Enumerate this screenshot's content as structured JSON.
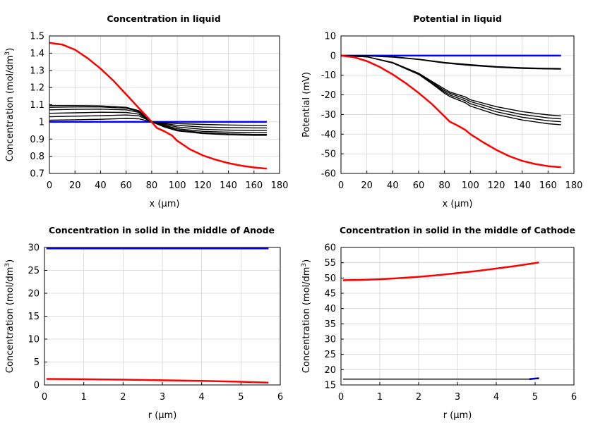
{
  "chart_data": [
    {
      "type": "line",
      "title": "Concentration in liquid",
      "xlabel": "x (µm)",
      "ylabel": "Concentration (mol/dm",
      "ylabel_sup": "3",
      "ylabel_end": ")",
      "xlim": [
        0,
        180
      ],
      "ylim": [
        0.7,
        1.5
      ],
      "xticks": [
        "0",
        "20",
        "40",
        "60",
        "80",
        "100",
        "120",
        "140",
        "160",
        "180"
      ],
      "yticks": [
        "0.7",
        "0.8",
        "0.9",
        "1",
        "1.1",
        "1.2",
        "1.3",
        "1.4",
        "1.5"
      ],
      "grid": true,
      "series": [
        {
          "color": "#0000ff",
          "x": [
            0,
            170
          ],
          "y": [
            1.0,
            1.0
          ]
        },
        {
          "color": "#000000",
          "x": [
            0,
            20,
            40,
            60,
            70,
            80,
            90,
            100,
            120,
            140,
            160,
            170
          ],
          "y": [
            1.01,
            1.012,
            1.015,
            1.02,
            1.018,
            1.0,
            0.995,
            0.99,
            0.985,
            0.982,
            0.98,
            0.98
          ]
        },
        {
          "color": "#000000",
          "x": [
            0,
            20,
            40,
            60,
            70,
            80,
            90,
            100,
            120,
            140,
            160,
            170
          ],
          "y": [
            1.03,
            1.033,
            1.036,
            1.04,
            1.035,
            1.0,
            0.99,
            0.98,
            0.97,
            0.967,
            0.965,
            0.965
          ]
        },
        {
          "color": "#000000",
          "x": [
            0,
            20,
            40,
            60,
            70,
            80,
            90,
            100,
            120,
            140,
            160,
            170
          ],
          "y": [
            1.05,
            1.053,
            1.056,
            1.055,
            1.045,
            1.0,
            0.985,
            0.97,
            0.957,
            0.952,
            0.95,
            0.95
          ]
        },
        {
          "color": "#000000",
          "x": [
            0,
            20,
            40,
            60,
            70,
            80,
            90,
            100,
            120,
            140,
            160,
            170
          ],
          "y": [
            1.07,
            1.073,
            1.074,
            1.07,
            1.055,
            1.0,
            0.98,
            0.96,
            0.945,
            0.94,
            0.937,
            0.937
          ]
        },
        {
          "color": "#000000",
          "x": [
            0,
            20,
            40,
            60,
            70,
            80,
            90,
            100,
            120,
            140,
            160,
            170
          ],
          "y": [
            1.085,
            1.087,
            1.087,
            1.08,
            1.06,
            1.0,
            0.975,
            0.953,
            0.937,
            0.93,
            0.927,
            0.927
          ]
        },
        {
          "color": "#000000",
          "x": [
            0,
            20,
            40,
            60,
            70,
            80,
            90,
            100,
            120,
            140,
            160,
            170
          ],
          "y": [
            1.095,
            1.095,
            1.093,
            1.085,
            1.065,
            1.0,
            0.97,
            0.948,
            0.932,
            0.925,
            0.922,
            0.922
          ]
        },
        {
          "color": "#ff0000",
          "x": [
            0,
            10,
            20,
            30,
            40,
            50,
            60,
            70,
            80,
            84,
            90,
            96,
            100,
            110,
            120,
            130,
            140,
            150,
            160,
            170
          ],
          "y": [
            1.46,
            1.45,
            1.42,
            1.37,
            1.31,
            1.24,
            1.16,
            1.08,
            1.0,
            0.965,
            0.945,
            0.92,
            0.89,
            0.84,
            0.805,
            0.78,
            0.76,
            0.745,
            0.735,
            0.728
          ]
        }
      ]
    },
    {
      "type": "line",
      "title": "Potential in liquid",
      "xlabel": "x (µm)",
      "ylabel": "Potential (mV)",
      "ylabel_sup": "",
      "ylabel_end": "",
      "xlim": [
        0,
        180
      ],
      "ylim": [
        -60,
        10
      ],
      "xticks": [
        "0",
        "20",
        "40",
        "60",
        "80",
        "100",
        "120",
        "140",
        "160",
        "180"
      ],
      "yticks": [
        "-60",
        "-50",
        "-40",
        "-30",
        "-20",
        "-10",
        "0",
        "10"
      ],
      "grid": true,
      "series": [
        {
          "color": "#0000ff",
          "x": [
            0,
            170
          ],
          "y": [
            0,
            0
          ]
        },
        {
          "color": "#000000",
          "x": [
            0,
            20,
            40,
            60,
            80,
            100,
            120,
            140,
            160,
            170
          ],
          "y": [
            0,
            -0.1,
            -0.6,
            -1.8,
            -3.5,
            -4.6,
            -5.6,
            -6.2,
            -6.5,
            -6.6
          ]
        },
        {
          "color": "#000000",
          "x": [
            0,
            20,
            40,
            60,
            80,
            100,
            120,
            140,
            160,
            170
          ],
          "y": [
            0,
            -0.15,
            -0.8,
            -2.0,
            -3.8,
            -5.0,
            -5.9,
            -6.5,
            -6.8,
            -6.9
          ]
        },
        {
          "color": "#000000",
          "x": [
            0,
            20,
            40,
            60,
            70,
            80,
            84,
            96,
            100,
            120,
            140,
            160,
            170
          ],
          "y": [
            0,
            -0.6,
            -3.5,
            -9.0,
            -13,
            -17,
            -18.5,
            -21,
            -22.5,
            -26,
            -28.5,
            -30.2,
            -30.7
          ]
        },
        {
          "color": "#000000",
          "x": [
            0,
            20,
            40,
            60,
            70,
            80,
            84,
            96,
            100,
            120,
            140,
            160,
            170
          ],
          "y": [
            0,
            -0.6,
            -3.6,
            -9.2,
            -13.4,
            -17.8,
            -19.2,
            -22,
            -23.4,
            -27.3,
            -30,
            -31.7,
            -32.2
          ]
        },
        {
          "color": "#000000",
          "x": [
            0,
            20,
            40,
            60,
            70,
            80,
            84,
            96,
            100,
            120,
            140,
            160,
            170
          ],
          "y": [
            0,
            -0.6,
            -3.7,
            -9.4,
            -13.8,
            -18.5,
            -20,
            -23,
            -24.5,
            -28.6,
            -31.4,
            -33.2,
            -33.7
          ]
        },
        {
          "color": "#000000",
          "x": [
            0,
            20,
            40,
            60,
            70,
            80,
            84,
            96,
            100,
            120,
            140,
            160,
            170
          ],
          "y": [
            0,
            -0.6,
            -3.8,
            -9.6,
            -14.2,
            -19.2,
            -20.8,
            -24,
            -25.7,
            -30,
            -32.8,
            -34.7,
            -35.2
          ]
        },
        {
          "color": "#ff0000",
          "x": [
            0,
            10,
            20,
            30,
            40,
            50,
            60,
            70,
            80,
            84,
            90,
            96,
            100,
            110,
            120,
            130,
            140,
            150,
            160,
            170
          ],
          "y": [
            0,
            -0.8,
            -2.8,
            -5.8,
            -9.6,
            -14.0,
            -19.0,
            -24.5,
            -31,
            -33.6,
            -35.6,
            -37.8,
            -40,
            -44.2,
            -48,
            -51.2,
            -53.6,
            -55.2,
            -56.3,
            -56.8
          ]
        }
      ]
    },
    {
      "type": "line",
      "title": "Concentration in solid in the middle of Anode",
      "xlabel": "r (µm)",
      "ylabel": "Concentration (mol/dm",
      "ylabel_sup": "3",
      "ylabel_end": ")",
      "xlim": [
        0,
        6
      ],
      "ylim": [
        0,
        30
      ],
      "xticks": [
        "0",
        "1",
        "2",
        "3",
        "4",
        "5",
        "6"
      ],
      "yticks": [
        "0",
        "5",
        "10",
        "15",
        "20",
        "25",
        "30"
      ],
      "grid": true,
      "series": [
        {
          "color": "#000000",
          "x": [
            0.05,
            5.7
          ],
          "y": [
            29.7,
            29.7
          ]
        },
        {
          "color": "#0000ff",
          "x": [
            0.05,
            5.7
          ],
          "y": [
            29.8,
            29.8
          ]
        },
        {
          "color": "#ff0000",
          "x": [
            0.05,
            1,
            2,
            3,
            4,
            5,
            5.7
          ],
          "y": [
            1.3,
            1.25,
            1.15,
            1.02,
            0.88,
            0.7,
            0.5
          ]
        }
      ]
    },
    {
      "type": "line",
      "title": "Concentration in solid in the middle of Cathode",
      "xlabel": "r (µm)",
      "ylabel": "Concentration (mol/dm",
      "ylabel_sup": "3",
      "ylabel_end": ")",
      "xlim": [
        0,
        6
      ],
      "ylim": [
        15,
        60
      ],
      "xticks": [
        "0",
        "1",
        "2",
        "3",
        "4",
        "5",
        "6"
      ],
      "yticks": [
        "15",
        "20",
        "25",
        "30",
        "35",
        "40",
        "45",
        "50",
        "55",
        "60"
      ],
      "grid": true,
      "series": [
        {
          "color": "#0000ff",
          "x": [
            4.85,
            5.1
          ],
          "y": [
            16.9,
            17.2
          ]
        },
        {
          "color": "#000000",
          "x": [
            0.05,
            4.9,
            5.1
          ],
          "y": [
            16.9,
            16.9,
            17.1
          ]
        },
        {
          "color": "#ff0000",
          "x": [
            0.05,
            0.5,
            1,
            1.5,
            2,
            2.5,
            3,
            3.5,
            4,
            4.5,
            5,
            5.1
          ],
          "y": [
            49.3,
            49.35,
            49.6,
            49.95,
            50.4,
            50.95,
            51.6,
            52.3,
            53.1,
            53.95,
            54.9,
            55.1
          ]
        }
      ]
    }
  ]
}
